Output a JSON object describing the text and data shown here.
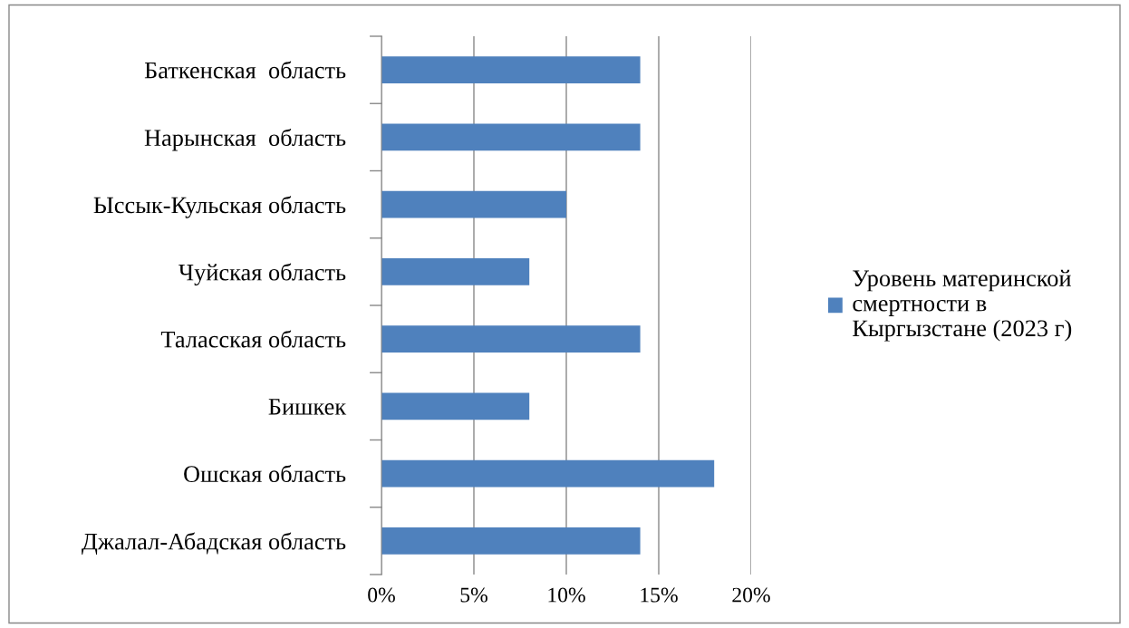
{
  "chart_data": {
    "type": "bar",
    "orientation": "horizontal",
    "categories": [
      "Баткенская  область",
      "Нарынская  область",
      "Ыссык-Кульская область",
      "Чуйская область",
      "Таласская область",
      "Бишкек",
      "Ошская область",
      "Джалал-Абадская область"
    ],
    "series": [
      {
        "name": "Уровень материнской смертности в Кыргызстане (2023 г)",
        "color": "#4f81bd",
        "values": [
          14,
          14,
          10,
          8,
          14,
          8,
          18,
          14
        ]
      }
    ],
    "xlim": [
      0,
      20
    ],
    "xticks": [
      {
        "value": 0,
        "label": "0%"
      },
      {
        "value": 5,
        "label": "5%"
      },
      {
        "value": 10,
        "label": "10%"
      },
      {
        "value": 15,
        "label": "15%"
      },
      {
        "value": 20,
        "label": "20%"
      }
    ],
    "grid": "x",
    "legend": "right"
  }
}
